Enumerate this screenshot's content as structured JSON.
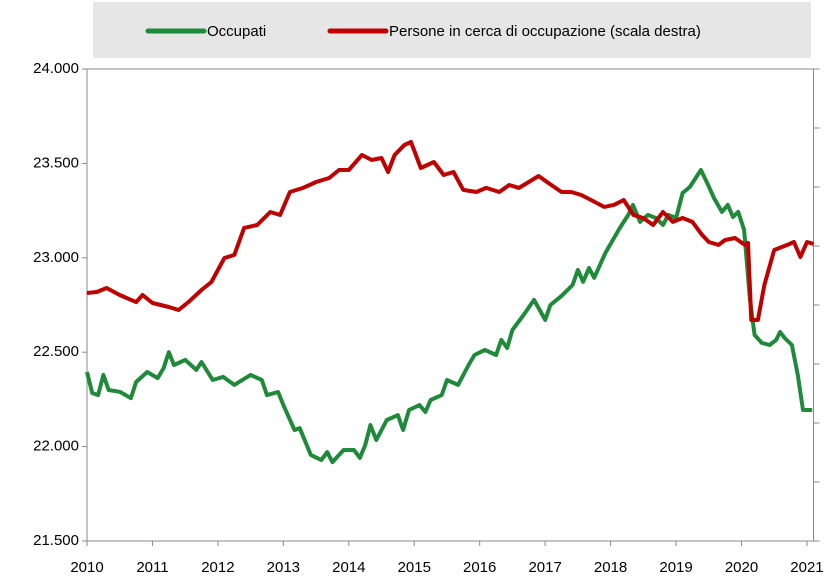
{
  "chart_data": {
    "type": "line",
    "legend": "top",
    "xlim": [
      2010,
      2021.1
    ],
    "xticks": [
      2010,
      2011,
      2012,
      2013,
      2014,
      2015,
      2016,
      2017,
      2018,
      2019,
      2020,
      2021
    ],
    "ylim": [
      21500,
      24000
    ],
    "yticks": [
      {
        "value": 21500,
        "label": "21.500"
      },
      {
        "value": 22000,
        "label": "22.000"
      },
      {
        "value": 22500,
        "label": "22.500"
      },
      {
        "value": 23000,
        "label": "23.000"
      },
      {
        "value": 23500,
        "label": "23.500"
      },
      {
        "value": 24000,
        "label": "24.000"
      }
    ],
    "y2lim": [
      0,
      4000
    ],
    "y2ticks": [
      0,
      500,
      1000,
      1500,
      2000,
      2500,
      3000,
      3500,
      4000
    ],
    "series": [
      {
        "name": "Occupati",
        "color": "#1e8a3a",
        "x": [
          2010.0,
          2010.08,
          2010.17,
          2010.25,
          2010.33,
          2010.5,
          2010.67,
          2010.75,
          2010.92,
          2011.08,
          2011.17,
          2011.25,
          2011.33,
          2011.5,
          2011.67,
          2011.75,
          2011.92,
          2012.08,
          2012.25,
          2012.5,
          2012.67,
          2012.75,
          2012.92,
          2013.0,
          2013.17,
          2013.25,
          2013.42,
          2013.58,
          2013.67,
          2013.75,
          2013.92,
          2014.08,
          2014.17,
          2014.25,
          2014.33,
          2014.42,
          2014.58,
          2014.75,
          2014.83,
          2014.92,
          2015.08,
          2015.17,
          2015.25,
          2015.42,
          2015.5,
          2015.67,
          2015.83,
          2015.92,
          2016.08,
          2016.25,
          2016.33,
          2016.42,
          2016.5,
          2016.67,
          2016.83,
          2017.0,
          2017.08,
          2017.25,
          2017.42,
          2017.5,
          2017.58,
          2017.67,
          2017.75,
          2017.92,
          2018.14,
          2018.27,
          2018.34,
          2018.45,
          2018.57,
          2018.69,
          2018.8,
          2018.88,
          2019.0,
          2019.1,
          2019.21,
          2019.38,
          2019.49,
          2019.58,
          2019.7,
          2019.79,
          2019.87,
          2019.95,
          2020.04,
          2020.13,
          2020.2,
          2020.31,
          2020.43,
          2020.53,
          2020.59,
          2020.66,
          2020.77,
          2020.86,
          2020.94,
          2021.08
        ],
        "values": [
          22395,
          22284,
          22273,
          22380,
          22300,
          22290,
          22257,
          22342,
          22395,
          22363,
          22416,
          22500,
          22432,
          22459,
          22406,
          22448,
          22353,
          22369,
          22327,
          22380,
          22353,
          22273,
          22289,
          22220,
          22088,
          22098,
          21956,
          21929,
          21971,
          21918,
          21982,
          21982,
          21940,
          22008,
          22114,
          22035,
          22141,
          22167,
          22088,
          22194,
          22220,
          22183,
          22247,
          22273,
          22353,
          22327,
          22432,
          22485,
          22512,
          22485,
          22565,
          22522,
          22618,
          22697,
          22777,
          22671,
          22750,
          22798,
          22856,
          22936,
          22873,
          22946,
          22894,
          23026,
          23158,
          23227,
          23280,
          23190,
          23227,
          23211,
          23174,
          23227,
          23211,
          23343,
          23375,
          23465,
          23386,
          23317,
          23243,
          23280,
          23216,
          23243,
          23148,
          22777,
          22591,
          22549,
          22538,
          22565,
          22607,
          22575,
          22538,
          22379,
          22194,
          22194
        ]
      },
      {
        "name": "Persone in cerca di occupazione (scala destra)",
        "color": "#c00000",
        "axis": "y2",
        "x": [
          2010.0,
          2010.15,
          2010.3,
          2010.5,
          2010.75,
          2010.85,
          2011.0,
          2011.25,
          2011.4,
          2011.55,
          2011.75,
          2011.9,
          2012.1,
          2012.25,
          2012.4,
          2012.6,
          2012.8,
          2012.95,
          2013.1,
          2013.3,
          2013.5,
          2013.7,
          2013.85,
          2014.0,
          2014.2,
          2014.35,
          2014.5,
          2014.6,
          2014.7,
          2014.85,
          2014.95,
          2015.1,
          2015.3,
          2015.45,
          2015.6,
          2015.75,
          2015.95,
          2016.1,
          2016.3,
          2016.45,
          2016.6,
          2016.75,
          2016.9,
          2017.05,
          2017.25,
          2017.4,
          2017.55,
          2017.7,
          2017.9,
          2018.05,
          2018.2,
          2018.35,
          2018.5,
          2018.65,
          2018.8,
          2018.95,
          2019.1,
          2019.25,
          2019.4,
          2019.5,
          2019.65,
          2019.75,
          2019.9,
          2020.05,
          2020.1,
          2020.15,
          2020.25,
          2020.35,
          2020.5,
          2020.7,
          2020.8,
          2020.9,
          2021.0,
          2021.1
        ],
        "values": [
          2102,
          2110,
          2144,
          2085,
          2025,
          2085,
          2017,
          1983,
          1958,
          2025,
          2127,
          2195,
          2398,
          2424,
          2653,
          2678,
          2788,
          2763,
          2958,
          2992,
          3042,
          3076,
          3144,
          3144,
          3271,
          3229,
          3246,
          3127,
          3271,
          3356,
          3381,
          3161,
          3212,
          3102,
          3127,
          2975,
          2958,
          2992,
          2958,
          3017,
          2992,
          3042,
          3093,
          3034,
          2958,
          2958,
          2932,
          2890,
          2831,
          2848,
          2890,
          2763,
          2737,
          2678,
          2788,
          2704,
          2737,
          2704,
          2593,
          2534,
          2509,
          2551,
          2568,
          2509,
          2526,
          1873,
          1873,
          2170,
          2466,
          2509,
          2534,
          2407,
          2534,
          2517
        ]
      }
    ]
  }
}
